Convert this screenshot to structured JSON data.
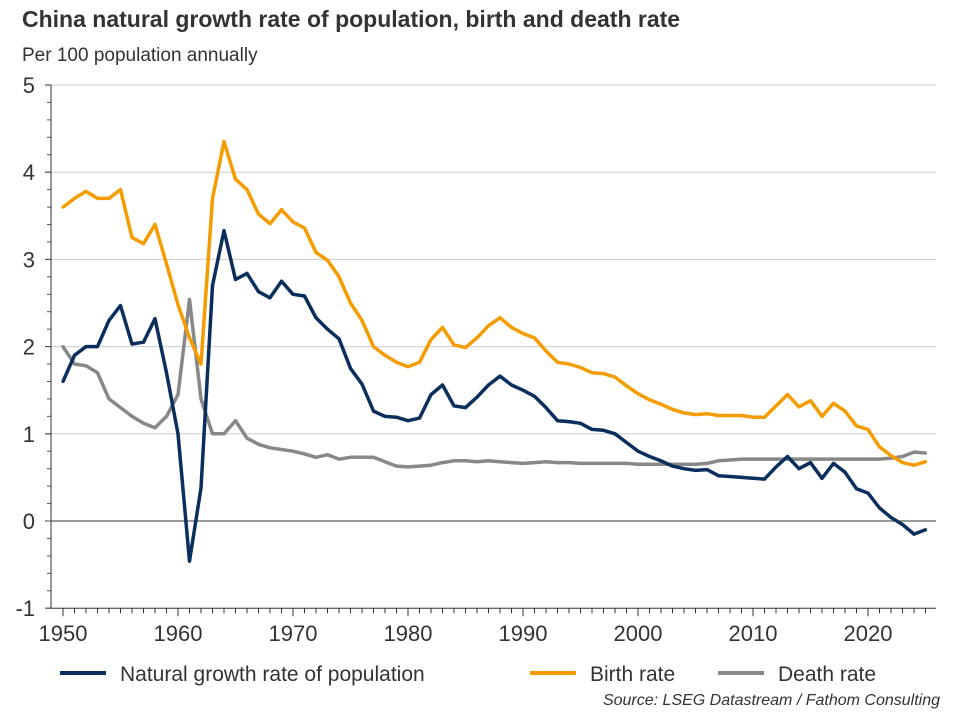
{
  "chart_data": {
    "type": "line",
    "title": "China natural growth rate of population, birth and death rate",
    "subtitle": "Per 100 population annually",
    "source": "Source: LSEG Datastream / Fathom Consulting",
    "xlabel": "",
    "ylabel": "",
    "xlim": [
      1949,
      2025.5
    ],
    "ylim": [
      -1,
      5
    ],
    "x_ticks": [
      "1950",
      "1960",
      "1970",
      "1980",
      "1990",
      "2000",
      "2010",
      "2020"
    ],
    "y_ticks": [
      "-1",
      "0",
      "1",
      "2",
      "3",
      "4",
      "5"
    ],
    "grid": true,
    "legend": "bottom",
    "x_start": 1950,
    "series": [
      {
        "name": "Natural growth rate of population",
        "color": "#0a2f5c",
        "values": [
          1.6,
          1.9,
          2.0,
          2.0,
          2.3,
          2.47,
          2.03,
          2.05,
          2.32,
          1.7,
          1.0,
          -0.46,
          0.38,
          2.7,
          3.33,
          2.77,
          2.84,
          2.63,
          2.56,
          2.75,
          2.6,
          2.58,
          2.33,
          2.2,
          2.09,
          1.75,
          1.57,
          1.26,
          1.2,
          1.19,
          1.15,
          1.18,
          1.45,
          1.56,
          1.32,
          1.3,
          1.42,
          1.56,
          1.66,
          1.56,
          1.5,
          1.43,
          1.3,
          1.15,
          1.14,
          1.12,
          1.05,
          1.04,
          1.0,
          0.9,
          0.8,
          0.74,
          0.69,
          0.63,
          0.6,
          0.58,
          0.59,
          0.52,
          0.51,
          0.5,
          0.49,
          0.48,
          0.62,
          0.74,
          0.6,
          0.67,
          0.49,
          0.66,
          0.56,
          0.37,
          0.32,
          0.15,
          0.04,
          -0.04,
          -0.15,
          -0.1
        ]
      },
      {
        "name": "Birth rate",
        "color": "#f59c00",
        "values": [
          3.6,
          3.7,
          3.78,
          3.7,
          3.7,
          3.8,
          3.25,
          3.18,
          3.4,
          2.95,
          2.48,
          2.1,
          1.8,
          3.7,
          4.35,
          3.92,
          3.8,
          3.52,
          3.41,
          3.57,
          3.43,
          3.36,
          3.08,
          2.99,
          2.8,
          2.5,
          2.3,
          2.0,
          1.9,
          1.82,
          1.77,
          1.82,
          2.08,
          2.22,
          2.02,
          1.99,
          2.1,
          2.24,
          2.33,
          2.22,
          2.15,
          2.1,
          1.95,
          1.82,
          1.8,
          1.76,
          1.7,
          1.69,
          1.65,
          1.55,
          1.46,
          1.39,
          1.34,
          1.28,
          1.24,
          1.22,
          1.23,
          1.21,
          1.21,
          1.21,
          1.19,
          1.19,
          1.32,
          1.45,
          1.31,
          1.38,
          1.2,
          1.35,
          1.26,
          1.09,
          1.05,
          0.85,
          0.75,
          0.67,
          0.64,
          0.68
        ]
      },
      {
        "name": "Death rate",
        "color": "#888888",
        "values": [
          2.0,
          1.8,
          1.78,
          1.7,
          1.4,
          1.3,
          1.2,
          1.12,
          1.07,
          1.2,
          1.45,
          2.54,
          1.4,
          1.0,
          1.0,
          1.15,
          0.95,
          0.88,
          0.84,
          0.82,
          0.8,
          0.77,
          0.73,
          0.76,
          0.71,
          0.73,
          0.73,
          0.73,
          0.68,
          0.63,
          0.62,
          0.63,
          0.64,
          0.67,
          0.69,
          0.69,
          0.68,
          0.69,
          0.68,
          0.67,
          0.66,
          0.67,
          0.68,
          0.67,
          0.67,
          0.66,
          0.66,
          0.66,
          0.66,
          0.66,
          0.65,
          0.65,
          0.65,
          0.65,
          0.65,
          0.65,
          0.66,
          0.69,
          0.7,
          0.71,
          0.71,
          0.71,
          0.71,
          0.71,
          0.71,
          0.71,
          0.71,
          0.71,
          0.71,
          0.71,
          0.71,
          0.71,
          0.72,
          0.74,
          0.79,
          0.78
        ]
      }
    ]
  }
}
